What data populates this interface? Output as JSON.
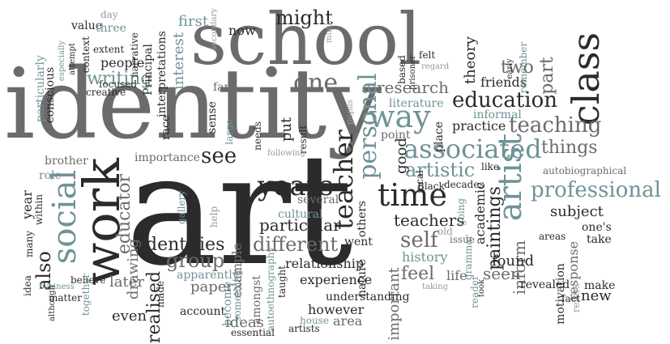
{
  "word_cloud": {
    "colors": {
      "dark": "#2b2b2b",
      "mid": "#6b6b6b",
      "light": "#9a9a9a",
      "teal": "#6f9396",
      "background": "#ffffff"
    },
    "words": [
      {
        "text": "art",
        "tone": "dark"
      },
      {
        "text": "identity",
        "tone": "mid"
      },
      {
        "text": "school",
        "tone": "mid"
      },
      {
        "text": "work",
        "tone": "dark"
      },
      {
        "text": "social",
        "tone": "teal"
      },
      {
        "text": "class",
        "tone": "dark"
      },
      {
        "text": "artist",
        "tone": "teal"
      },
      {
        "text": "associated",
        "tone": "teal"
      },
      {
        "text": "time",
        "tone": "dark"
      },
      {
        "text": "way",
        "tone": "teal"
      },
      {
        "text": "years",
        "tone": "dark"
      },
      {
        "text": "one",
        "tone": "mid"
      },
      {
        "text": "personal",
        "tone": "teal"
      },
      {
        "text": "teacher",
        "tone": "dark"
      },
      {
        "text": "professional",
        "tone": "teal"
      },
      {
        "text": "education",
        "tone": "dark"
      },
      {
        "text": "teaching",
        "tone": "mid"
      },
      {
        "text": "different",
        "tone": "mid"
      },
      {
        "text": "see",
        "tone": "dark"
      },
      {
        "text": "might",
        "tone": "dark"
      },
      {
        "text": "artistic",
        "tone": "teal"
      },
      {
        "text": "self",
        "tone": "mid"
      },
      {
        "text": "group",
        "tone": "mid"
      },
      {
        "text": "teachers",
        "tone": "dark"
      },
      {
        "text": "paintings",
        "tone": "dark"
      },
      {
        "text": "things",
        "tone": "mid"
      },
      {
        "text": "research",
        "tone": "mid"
      },
      {
        "text": "educator",
        "tone": "mid"
      },
      {
        "text": "identities",
        "tone": "dark"
      },
      {
        "text": "particular",
        "tone": "dark"
      },
      {
        "text": "realised",
        "tone": "dark"
      },
      {
        "text": "also",
        "tone": "dark"
      },
      {
        "text": "feel",
        "tone": "mid"
      },
      {
        "text": "part",
        "tone": "mid"
      },
      {
        "text": "two",
        "tone": "mid"
      },
      {
        "text": "writing",
        "tone": "teal"
      },
      {
        "text": "interest",
        "tone": "teal"
      },
      {
        "text": "first",
        "tone": "teal"
      },
      {
        "text": "theory",
        "tone": "dark"
      },
      {
        "text": "good",
        "tone": "dark"
      },
      {
        "text": "subject",
        "tone": "dark"
      },
      {
        "text": "inform",
        "tone": "mid"
      },
      {
        "text": "seen",
        "tone": "mid"
      },
      {
        "text": "found",
        "tone": "dark"
      },
      {
        "text": "practice",
        "tone": "dark"
      },
      {
        "text": "academic",
        "tone": "dark"
      },
      {
        "text": "friends",
        "tone": "dark"
      },
      {
        "text": "paper",
        "tone": "mid"
      },
      {
        "text": "drawing",
        "tone": "mid"
      },
      {
        "text": "later",
        "tone": "mid"
      },
      {
        "text": "even",
        "tone": "dark"
      },
      {
        "text": "ideas",
        "tone": "mid"
      },
      {
        "text": "however",
        "tone": "dark"
      },
      {
        "text": "experience",
        "tone": "dark"
      },
      {
        "text": "relationship",
        "tone": "dark"
      },
      {
        "text": "history",
        "tone": "teal"
      },
      {
        "text": "important",
        "tone": "mid"
      },
      {
        "text": "put",
        "tone": "dark"
      },
      {
        "text": "now",
        "tone": "dark"
      },
      {
        "text": "year",
        "tone": "dark"
      },
      {
        "text": "role",
        "tone": "teal"
      },
      {
        "text": "people",
        "tone": "dark"
      },
      {
        "text": "importance",
        "tone": "mid"
      },
      {
        "text": "sense",
        "tone": "dark"
      },
      {
        "text": "cultural",
        "tone": "teal"
      },
      {
        "text": "several",
        "tone": "mid"
      },
      {
        "text": "life",
        "tone": "mid"
      },
      {
        "text": "went",
        "tone": "dark"
      },
      {
        "text": "example",
        "tone": "mid"
      },
      {
        "text": "account",
        "tone": "dark"
      },
      {
        "text": "response",
        "tone": "mid"
      },
      {
        "text": "motivation",
        "tone": "dark"
      },
      {
        "text": "revealed",
        "tone": "dark"
      },
      {
        "text": "new",
        "tone": "dark"
      },
      {
        "text": "take",
        "tone": "dark"
      },
      {
        "text": "make",
        "tone": "dark"
      },
      {
        "text": "one's",
        "tone": "dark"
      },
      {
        "text": "autobiographical",
        "tone": "mid"
      },
      {
        "text": "literature",
        "tone": "teal"
      },
      {
        "text": "informal",
        "tone": "teal"
      },
      {
        "text": "point",
        "tone": "mid"
      },
      {
        "text": "place",
        "tone": "dark"
      },
      {
        "text": "interpretations",
        "tone": "dark"
      },
      {
        "text": "Principal",
        "tone": "dark"
      },
      {
        "text": "narrative",
        "tone": "dark"
      },
      {
        "text": "extent",
        "tone": "dark"
      },
      {
        "text": "value",
        "tone": "dark"
      },
      {
        "text": "day",
        "tone": "light"
      },
      {
        "text": "three",
        "tone": "teal"
      },
      {
        "text": "context",
        "tone": "dark"
      },
      {
        "text": "conscious",
        "tone": "dark"
      },
      {
        "text": "particularly",
        "tone": "teal"
      },
      {
        "text": "especially",
        "tone": "teal"
      },
      {
        "text": "attempt",
        "tone": "dark"
      },
      {
        "text": "focused",
        "tone": "dark"
      },
      {
        "text": "creative",
        "tone": "dark"
      },
      {
        "text": "race",
        "tone": "dark"
      },
      {
        "text": "far",
        "tone": "mid"
      },
      {
        "text": "large",
        "tone": "teal"
      },
      {
        "text": "needs",
        "tone": "dark"
      },
      {
        "text": "result",
        "tone": "dark"
      },
      {
        "text": "following",
        "tone": "light"
      },
      {
        "text": "brother",
        "tone": "mid"
      },
      {
        "text": "within",
        "tone": "dark"
      },
      {
        "text": "many",
        "tone": "dark"
      },
      {
        "text": "idea",
        "tone": "dark"
      },
      {
        "text": "business",
        "tone": "teal"
      },
      {
        "text": "although",
        "tone": "dark"
      },
      {
        "text": "matter",
        "tone": "dark"
      },
      {
        "text": "believe",
        "tone": "dark"
      },
      {
        "text": "together",
        "tone": "teal"
      },
      {
        "text": "gallery",
        "tone": "teal"
      },
      {
        "text": "help",
        "tone": "light"
      },
      {
        "text": "apparently",
        "tone": "teal"
      },
      {
        "text": "made",
        "tone": "dark"
      },
      {
        "text": "become",
        "tone": "teal"
      },
      {
        "text": "something",
        "tone": "teal"
      },
      {
        "text": "amongst",
        "tone": "mid"
      },
      {
        "text": "autoethnography",
        "tone": "teal"
      },
      {
        "text": "taught",
        "tone": "dark"
      },
      {
        "text": "essential",
        "tone": "dark"
      },
      {
        "text": "artists",
        "tone": "dark"
      },
      {
        "text": "house",
        "tone": "teal"
      },
      {
        "text": "area",
        "tone": "mid"
      },
      {
        "text": "understanding",
        "tone": "dark"
      },
      {
        "text": "nature",
        "tone": "dark"
      },
      {
        "text": "others",
        "tone": "dark"
      },
      {
        "text": "local",
        "tone": "dark"
      },
      {
        "text": "Black",
        "tone": "dark"
      },
      {
        "text": "decades",
        "tone": "dark"
      },
      {
        "text": "old",
        "tone": "light"
      },
      {
        "text": "issue",
        "tone": "mid"
      },
      {
        "text": "going",
        "tone": "teal"
      },
      {
        "text": "grammar",
        "tone": "teal"
      },
      {
        "text": "reader",
        "tone": "teal"
      },
      {
        "text": "took",
        "tone": "dark"
      },
      {
        "text": "taking",
        "tone": "light"
      },
      {
        "text": "like",
        "tone": "dark"
      },
      {
        "text": "areas",
        "tone": "dark"
      },
      {
        "text": "refers",
        "tone": "light"
      },
      {
        "text": "fact",
        "tone": "dark"
      },
      {
        "text": "based",
        "tone": "dark"
      },
      {
        "text": "prisoner",
        "tone": "dark"
      },
      {
        "text": "felt",
        "tone": "dark"
      },
      {
        "text": "regard",
        "tone": "light"
      },
      {
        "text": "remember",
        "tone": "teal"
      },
      {
        "text": "early",
        "tone": "dark"
      },
      {
        "text": "pupils",
        "tone": "light"
      },
      {
        "text": "secondary",
        "tone": "light"
      },
      {
        "text": "much",
        "tone": "light"
      }
    ]
  }
}
